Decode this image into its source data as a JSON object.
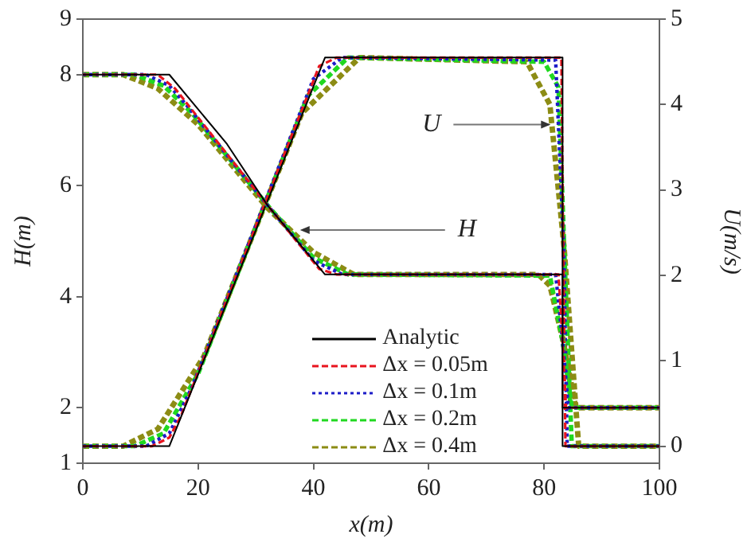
{
  "chart_data": {
    "type": "line",
    "xlabel": "x(m)",
    "ylabel": "H(m)",
    "y2label": "U(m/s)",
    "xlim": [
      0,
      100
    ],
    "xticks": [
      0,
      20,
      40,
      60,
      80,
      100
    ],
    "ylim": [
      1,
      9
    ],
    "yticks": [
      1,
      2,
      4,
      6,
      8,
      9
    ],
    "y2lim": [
      -0.2,
      5
    ],
    "y2ticks": [
      0,
      1,
      2,
      3,
      4,
      5
    ],
    "grid": false,
    "legend": "bottom",
    "marker": "none",
    "annotations": [
      {
        "text": "H",
        "x": 37.4,
        "y": 5.2
      },
      {
        "text": "U",
        "x": 81.4,
        "y": 7.1
      }
    ],
    "series": [
      {
        "name": "Analytic",
        "color": "#000000",
        "line_style": "solid",
        "x": [
          0,
          15,
          25,
          32,
          42,
          83.2,
          83.2,
          100
        ],
        "values": [
          8,
          8,
          6.75,
          5.65,
          4.4,
          4.4,
          2.0,
          2.0
        ]
      },
      {
        "name": "Δx = 0.05m",
        "color": "#e8141e",
        "line_style": "dashed",
        "x": [
          0,
          13,
          16,
          32,
          41,
          44,
          82.5,
          83.2,
          83.8,
          100
        ],
        "values": [
          8,
          8,
          7.75,
          5.65,
          4.5,
          4.4,
          4.4,
          3.2,
          2.0,
          2.0
        ]
      },
      {
        "name": "Δx = 0.1m",
        "color": "#1c1cc8",
        "line_style": "dotted",
        "x": [
          0,
          11,
          15,
          18,
          32,
          40,
          45,
          82,
          83.2,
          84.2,
          100
        ],
        "values": [
          8,
          8,
          7.8,
          7.45,
          5.65,
          4.65,
          4.4,
          4.4,
          3.2,
          2.0,
          2.0
        ]
      },
      {
        "name": "Δx = 0.2m",
        "color": "#20d820",
        "line_style": "dashed",
        "x": [
          0,
          9,
          14,
          19,
          32,
          40,
          46,
          81,
          83.2,
          84.8,
          100
        ],
        "values": [
          8,
          8,
          7.8,
          7.3,
          5.65,
          4.7,
          4.4,
          4.38,
          3.2,
          2.0,
          2.0
        ]
      },
      {
        "name": "Δx = 0.4m",
        "color": "#8c8c14",
        "line_style": "dashed",
        "x": [
          0,
          7,
          13,
          20,
          32,
          40,
          47,
          79,
          81,
          83.3,
          85.5,
          100
        ],
        "values": [
          8,
          8,
          7.75,
          7.1,
          5.6,
          4.8,
          4.4,
          4.4,
          4.2,
          3.2,
          2.0,
          2.0
        ]
      },
      {
        "color": "#000000",
        "line_style": "solid",
        "axis": "y2",
        "x": [
          0,
          15,
          42,
          83.2,
          83.2,
          100
        ],
        "values": [
          0,
          0,
          4.55,
          4.55,
          0,
          0
        ]
      },
      {
        "color": "#e8141e",
        "line_style": "dashed",
        "axis": "y2",
        "x": [
          0,
          12,
          15,
          17,
          41,
          44,
          83,
          83.3,
          83.7,
          100
        ],
        "values": [
          0,
          0,
          0.1,
          0.35,
          4.45,
          4.55,
          4.55,
          2.3,
          0,
          0
        ]
      },
      {
        "color": "#1c1cc8",
        "line_style": "dotted",
        "axis": "y2",
        "x": [
          0,
          11,
          15,
          19,
          40,
          45,
          82,
          83.4,
          84,
          100
        ],
        "values": [
          0,
          0,
          0.15,
          0.7,
          4.3,
          4.55,
          4.52,
          2.3,
          0,
          0
        ]
      },
      {
        "color": "#20d820",
        "line_style": "dashed",
        "axis": "y2",
        "x": [
          0,
          9,
          14,
          20,
          39,
          46,
          80,
          82.5,
          83.5,
          84.8,
          100
        ],
        "values": [
          0,
          0,
          0.15,
          0.85,
          4.1,
          4.55,
          4.5,
          4.2,
          2.3,
          0,
          0
        ]
      },
      {
        "color": "#8c8c14",
        "line_style": "dashed",
        "axis": "y2",
        "x": [
          0,
          7,
          13,
          21,
          38,
          48,
          77,
          81,
          83.5,
          86,
          100
        ],
        "values": [
          0,
          0,
          0.2,
          1.05,
          3.9,
          4.55,
          4.5,
          4.0,
          2.3,
          0,
          0
        ]
      }
    ]
  }
}
